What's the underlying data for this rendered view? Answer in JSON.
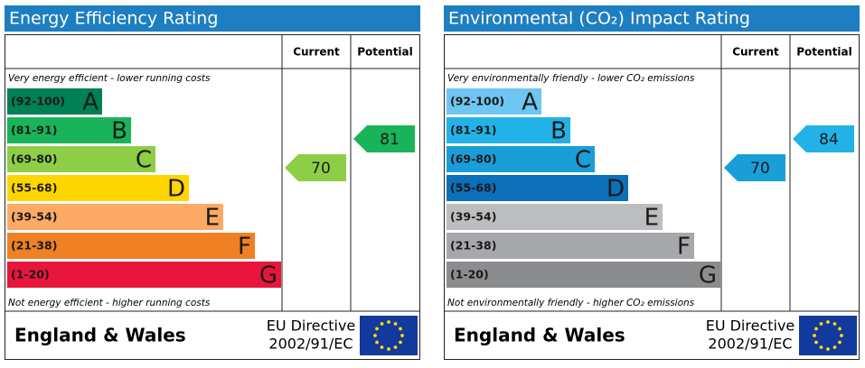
{
  "panels": [
    {
      "title": "Energy Efficiency Rating",
      "columns": [
        "Current",
        "Potential"
      ],
      "top_note": "Very energy efficient - lower running costs",
      "bottom_note": "Not energy efficient - higher running costs",
      "bands": [
        {
          "range": "(92-100)",
          "letter": "A",
          "color": "#008054"
        },
        {
          "range": "(81-91)",
          "letter": "B",
          "color": "#19b459"
        },
        {
          "range": "(69-80)",
          "letter": "C",
          "color": "#8dce46"
        },
        {
          "range": "(55-68)",
          "letter": "D",
          "color": "#ffd500"
        },
        {
          "range": "(39-54)",
          "letter": "E",
          "color": "#fcaa65"
        },
        {
          "range": "(21-38)",
          "letter": "F",
          "color": "#ef8023"
        },
        {
          "range": "(1-20)",
          "letter": "G",
          "color": "#e9153b"
        }
      ],
      "current": 70,
      "potential": 81,
      "region": "England & Wales",
      "directive": [
        "EU Directive",
        "2002/91/EC"
      ]
    },
    {
      "title": "Environmental (CO₂) Impact Rating",
      "columns": [
        "Current",
        "Potential"
      ],
      "top_note": "Very environmentally friendly - lower CO₂ emissions",
      "bottom_note": "Not environmentally friendly - higher CO₂ emissions",
      "bands": [
        {
          "range": "(92-100)",
          "letter": "A",
          "color": "#6ec6f0"
        },
        {
          "range": "(81-91)",
          "letter": "B",
          "color": "#22b2e8"
        },
        {
          "range": "(69-80)",
          "letter": "C",
          "color": "#1a9ed8"
        },
        {
          "range": "(55-68)",
          "letter": "D",
          "color": "#0b6fba"
        },
        {
          "range": "(39-54)",
          "letter": "E",
          "color": "#bbbdbf"
        },
        {
          "range": "(21-38)",
          "letter": "F",
          "color": "#a6a8ab"
        },
        {
          "range": "(1-20)",
          "letter": "G",
          "color": "#8b8c8e"
        }
      ],
      "current": 70,
      "potential": 84,
      "region": "England & Wales",
      "directive": [
        "EU Directive",
        "2002/91/EC"
      ]
    }
  ]
}
